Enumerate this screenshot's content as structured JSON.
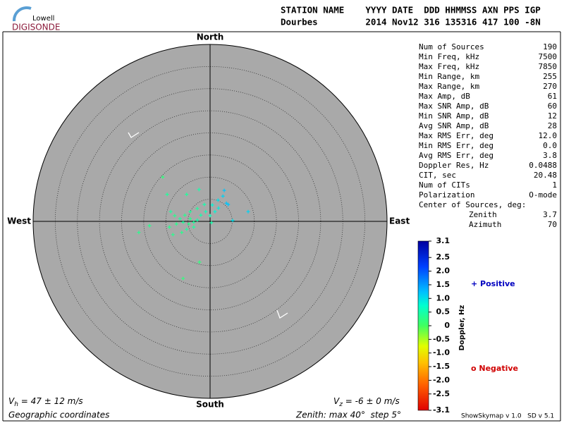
{
  "logo": {
    "top": "Lowell",
    "bottom": "DIGISONDE"
  },
  "header": {
    "line1": "STATION NAME    YYYY DATE  DDD HHMMSS AXN PPS IGP",
    "line2": "Dourbes         2014 Nov12 316 135316 417 100 -8N"
  },
  "compass": {
    "north": "North",
    "south": "South",
    "east": "East",
    "west": "West"
  },
  "stats": [
    {
      "label": "Num of Sources",
      "value": "190"
    },
    {
      "label": "Min Freq, kHz",
      "value": "7500"
    },
    {
      "label": "Max Freq, kHz",
      "value": "7850"
    },
    {
      "label": "Min Range, km",
      "value": "255"
    },
    {
      "label": "Max Range, km",
      "value": "270"
    },
    {
      "label": "Max Amp, dB",
      "value": "61"
    },
    {
      "label": "Max SNR Amp, dB",
      "value": "60"
    },
    {
      "label": "Min SNR Amp, dB",
      "value": "12"
    },
    {
      "label": "Avg SNR Amp, dB",
      "value": "28"
    },
    {
      "label": "Max RMS Err, deg",
      "value": "12.0"
    },
    {
      "label": "Min RMS Err, deg",
      "value": "0.0"
    },
    {
      "label": "Avg RMS Err, deg",
      "value": "3.8"
    },
    {
      "label": "Doppler Res, Hz",
      "value": "0.0488"
    },
    {
      "label": "CIT, sec",
      "value": "20.48"
    },
    {
      "label": "Num of CITs",
      "value": "1"
    },
    {
      "label": "Polarization",
      "value": "O-mode"
    }
  ],
  "center": {
    "title": "Center of Sources, deg:",
    "rows": [
      {
        "label": "Zenith",
        "value": "3.7"
      },
      {
        "label": "Azimuth",
        "value": "70"
      }
    ]
  },
  "colorbar": {
    "label": "Doppler, Hz",
    "lim": [
      -3.1,
      3.1
    ],
    "ticks": [
      {
        "value": 3.1,
        "label": "3.1"
      },
      {
        "value": 2.5,
        "label": "2.5"
      },
      {
        "value": 2.0,
        "label": "2.0"
      },
      {
        "value": 1.5,
        "label": "1.5"
      },
      {
        "value": 1.0,
        "label": "1.0"
      },
      {
        "value": 0.5,
        "label": "0.5"
      },
      0,
      {
        "value": -0.5,
        "label": "-0.5"
      },
      {
        "value": -1.0,
        "label": "-1.0"
      },
      {
        "value": -1.5,
        "label": "-1.5"
      },
      {
        "value": -2.0,
        "label": "-2.0"
      },
      {
        "value": -2.5,
        "label": "-2.5"
      },
      {
        "value": -3.1,
        "label": "-3.1"
      }
    ]
  },
  "legend": {
    "positive": "+ Positive",
    "negative": "o Negative"
  },
  "zenith_scale": {
    "max": 40,
    "step": 5
  },
  "points": {
    "x": [
      -10.7,
      -9.7,
      -5.3,
      -2.5,
      3.2,
      2.9,
      3.7,
      1.8,
      0.5,
      -1.3,
      -2.9,
      -4.5,
      -5.7,
      -6.8,
      -8.0,
      -8.9,
      -4.5,
      -3.7,
      -4.8,
      -6.1,
      -2.9,
      -2.1,
      -1.0,
      0,
      1.1,
      5.1,
      8.6,
      -9.2,
      -13.7,
      -16.1,
      -8.4,
      -6.4,
      -2.4,
      -6.1,
      -5.3,
      -3.7,
      -7.6,
      0.3,
      4.1,
      1.9
    ],
    "y": [
      10.0,
      6.1,
      6.1,
      7.2,
      7.0,
      5.7,
      4.1,
      4.8,
      3.7,
      3.8,
      2.9,
      2.2,
      1.4,
      0.6,
      1.3,
      2.2,
      0.6,
      -0.2,
      -0.6,
      -0.2,
      0.3,
      1.4,
      2.2,
      1.3,
      2.2,
      0.2,
      2.2,
      -1.3,
      -1.0,
      -2.5,
      -3.0,
      -2.5,
      -9.2,
      -12.9,
      -1.8,
      -1.3,
      -0.6,
      -0.3,
      3.8,
      3.0
    ],
    "doppler": [
      0.2,
      0.4,
      0.4,
      0.5,
      1.2,
      1.1,
      1.2,
      1.0,
      0.8,
      0.5,
      0.4,
      0.4,
      0.3,
      0.4,
      0.3,
      0.4,
      0.3,
      0.4,
      0.3,
      0.4,
      0.5,
      0.5,
      0.6,
      0.6,
      0.8,
      1.0,
      1.1,
      0.3,
      0.3,
      0.3,
      0.3,
      0.3,
      0.2,
      0.2,
      0.4,
      0.4,
      0.3,
      0.5,
      1.2,
      0.9
    ]
  },
  "footer": {
    "vh_symbol": "V",
    "vh_sub": "h",
    "vh_text": " = 47 ± 12 m/s",
    "vz_symbol": "V",
    "vz_sub": "z",
    "vz_text": " = -6 ± 0 m/s",
    "coords": "Geographic coordinates",
    "zenith": "Zenith: max 40°  step 5°",
    "version": "ShowSkymap v 1.0   SD v 5.1"
  }
}
